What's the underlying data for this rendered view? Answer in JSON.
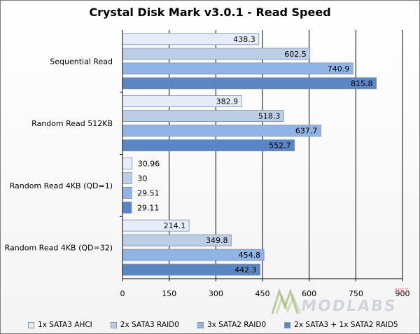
{
  "chart_data": {
    "type": "bar",
    "orientation": "horizontal",
    "title": "Crystal Disk Mark v3.0.1 - Read Speed",
    "categories": [
      "Sequential Read",
      "Random Read 512KB",
      "Random Read 4KB (QD=1)",
      "Random Read 4KB (QD=32)"
    ],
    "series": [
      {
        "name": "1x SATA3 AHCI",
        "values": [
          438.3,
          382.9,
          30.96,
          214.1
        ],
        "labels": [
          "438.3",
          "382.9",
          "30.96",
          "214.1"
        ],
        "color": "#e6ecf8"
      },
      {
        "name": "2x SATA3 RAID0",
        "values": [
          602.5,
          518.3,
          30,
          349.8
        ],
        "labels": [
          "602.5",
          "518.3",
          "30",
          "349.8"
        ],
        "color": "#bccde6"
      },
      {
        "name": "3x SATA2 RAID0",
        "values": [
          740.9,
          637.7,
          29.51,
          454.8
        ],
        "labels": [
          "740.9",
          "637.7",
          "29.51",
          "454.8"
        ],
        "color": "#90b4e6"
      },
      {
        "name": "2x SATA3 + 1x SATA2 RAID5",
        "values": [
          815.8,
          552.7,
          29.11,
          442.3
        ],
        "labels": [
          "815.8",
          "552.7",
          "29.11",
          "442.3"
        ],
        "color": "#5b86c4"
      }
    ],
    "xlim": [
      0,
      900
    ],
    "xticks": [
      0,
      150,
      300,
      450,
      600,
      750,
      900
    ],
    "grid": "vertical",
    "legend": "bottom"
  },
  "watermark": {
    "text": "MODLABS",
    "suffix": "NET"
  }
}
